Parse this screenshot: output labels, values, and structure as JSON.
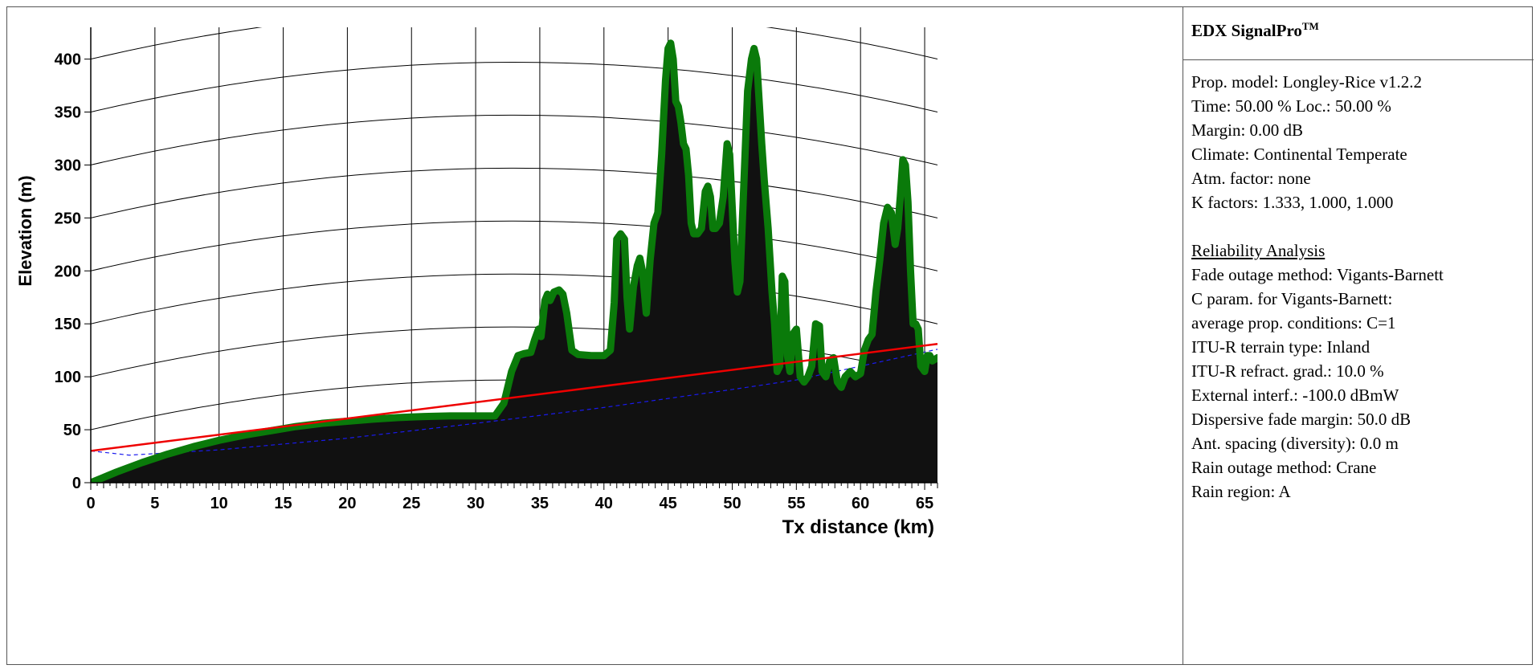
{
  "side_panel": {
    "title": "EDX SignalPro",
    "title_mark": "TM",
    "params": [
      "Prop. model: Longley-Rice v1.2.2",
      "Time: 50.00 %  Loc.: 50.00 %",
      "Margin: 0.00 dB",
      "Climate: Continental Temperate",
      "Atm. factor: none",
      "K factors: 1.333, 1.000, 1.000"
    ],
    "reliability_heading": "Reliability Analysis",
    "reliability": [
      "Fade outage method: Vigants-Barnett",
      "C param. for Vigants-Barnett:",
      "average prop. conditions: C=1",
      "ITU-R terrain type: Inland",
      "ITU-R refract. grad.: 10.0 %",
      "External interf.: -100.0 dBmW",
      "Dispersive fade margin: 50.0 dB",
      "Ant. spacing (diversity): 0.0 m",
      "Rain outage method: Crane",
      "Rain region: A"
    ]
  },
  "colors": {
    "terrain_fill": "#111111",
    "terrain_outline": "#0a7a0a",
    "los_line": "#ee0000",
    "fresnel_line": "#1a1aee",
    "grid": "#000000"
  },
  "chart_data": {
    "type": "line",
    "xlabel": "Tx distance (km)",
    "ylabel": "Elevation (m)",
    "xlim": [
      0,
      66
    ],
    "ylim": [
      0,
      430
    ],
    "xticks": [
      0,
      5,
      10,
      15,
      20,
      25,
      30,
      35,
      40,
      45,
      50,
      55,
      60,
      65
    ],
    "yticks": [
      0,
      50,
      100,
      150,
      200,
      250,
      300,
      350,
      400
    ],
    "grid": true,
    "series": [
      {
        "role": "terrain",
        "x": [
          0,
          2,
          4,
          6,
          8,
          10,
          12,
          14,
          16,
          18,
          20,
          22,
          24,
          26,
          28,
          30,
          31.5,
          32.2,
          32.8,
          33.3,
          33.8,
          34.3,
          34.6,
          34.9,
          35.1,
          35.4,
          35.6,
          35.8,
          36.1,
          36.5,
          36.8,
          37.1,
          37.5,
          38,
          39,
          40,
          40.5,
          40.8,
          41,
          41.3,
          41.6,
          41.8,
          42,
          42.3,
          42.6,
          42.8,
          43,
          43.3,
          43.6,
          43.9,
          44.2,
          44.5,
          44.8,
          45,
          45.2,
          45.4,
          45.6,
          45.8,
          46,
          46.2,
          46.4,
          46.6,
          46.8,
          47,
          47.3,
          47.6,
          47.9,
          48.1,
          48.3,
          48.5,
          48.7,
          49,
          49.3,
          49.6,
          49.8,
          50,
          50.2,
          50.4,
          50.6,
          50.9,
          51.2,
          51.5,
          51.7,
          51.9,
          52.1,
          52.3,
          52.5,
          52.8,
          53.1,
          53.3,
          53.5,
          53.7,
          53.9,
          54.1,
          54.3,
          54.5,
          54.7,
          55,
          55.3,
          55.6,
          55.9,
          56.2,
          56.5,
          56.8,
          57,
          57.3,
          57.6,
          57.9,
          58.2,
          58.5,
          58.8,
          59.2,
          59.6,
          60,
          60.3,
          60.6,
          60.9,
          61.2,
          61.5,
          61.8,
          62.1,
          62.4,
          62.7,
          62.9,
          63.1,
          63.3,
          63.5,
          63.7,
          63.9,
          64.1,
          64.3,
          64.5,
          64.7,
          65,
          65.2,
          65.4,
          65.6,
          66
        ],
        "values": [
          0,
          10,
          19,
          27,
          34,
          40,
          45,
          49,
          53,
          56,
          58,
          60,
          61.5,
          62.5,
          63,
          63,
          63,
          75,
          105,
          120,
          122,
          123,
          135,
          145,
          138,
          172,
          178,
          172,
          180,
          182,
          178,
          160,
          125,
          121,
          120,
          120,
          125,
          170,
          230,
          235,
          230,
          175,
          145,
          185,
          205,
          212,
          200,
          160,
          210,
          245,
          255,
          310,
          380,
          410,
          415,
          400,
          360,
          355,
          340,
          320,
          315,
          290,
          245,
          235,
          235,
          240,
          275,
          280,
          270,
          240,
          240,
          245,
          270,
          320,
          310,
          260,
          210,
          180,
          190,
          280,
          370,
          400,
          410,
          400,
          360,
          320,
          285,
          240,
          180,
          150,
          105,
          110,
          195,
          190,
          120,
          105,
          140,
          145,
          100,
          95,
          100,
          110,
          150,
          148,
          105,
          100,
          115,
          118,
          95,
          90,
          100,
          105,
          100,
          103,
          125,
          135,
          140,
          180,
          210,
          245,
          260,
          255,
          225,
          240,
          270,
          305,
          300,
          265,
          200,
          150,
          150,
          145,
          110,
          105,
          120,
          120,
          115,
          118
        ]
      },
      {
        "role": "line-of-sight",
        "x": [
          0,
          66
        ],
        "values": [
          30,
          131
        ]
      },
      {
        "role": "fresnel-clearance",
        "x": [
          0,
          3,
          10,
          20,
          30,
          40,
          50,
          55,
          60,
          63,
          66
        ],
        "values": [
          30,
          26,
          31,
          42,
          56,
          71,
          88,
          97,
          110,
          118,
          126
        ]
      }
    ]
  }
}
